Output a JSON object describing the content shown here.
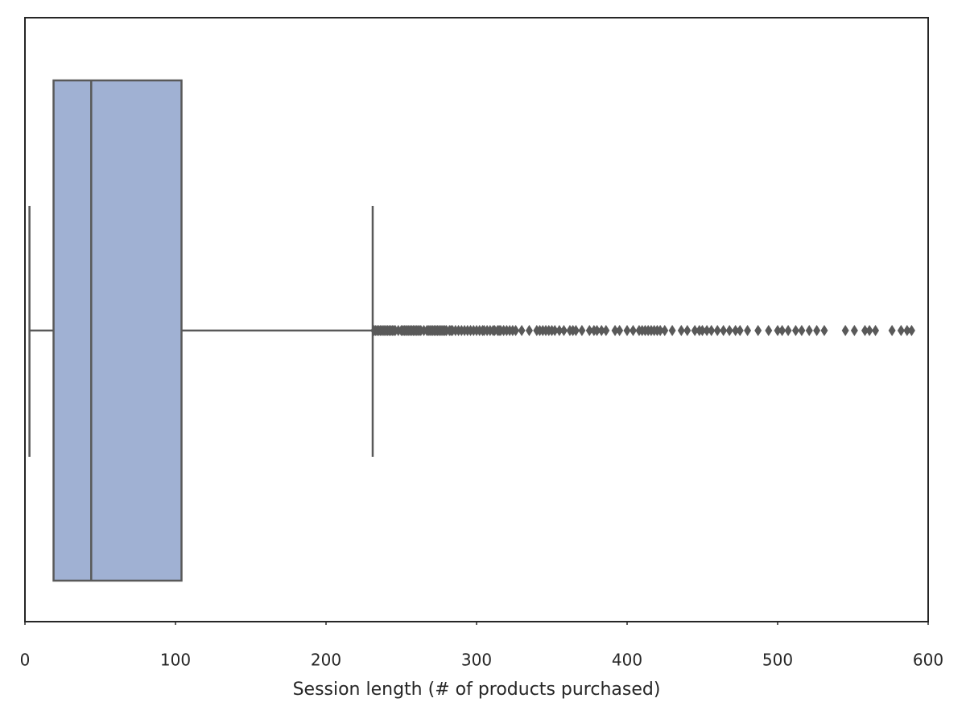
{
  "chart_data": {
    "type": "box",
    "orientation": "horizontal",
    "xlabel": "Session length (# of products purchased)",
    "xlim": [
      0,
      600
    ],
    "xticks": [
      0,
      100,
      200,
      300,
      400,
      500,
      600
    ],
    "color": "#a0b1d3",
    "edge_color": "#595959",
    "whislo": 3,
    "q1": 19,
    "med": 44,
    "q3": 104,
    "whishi": 231,
    "fliers": [
      232,
      233,
      234,
      235,
      236,
      237,
      238,
      239,
      240,
      241,
      242,
      243,
      244,
      245,
      246,
      248,
      250,
      251,
      252,
      253,
      254,
      255,
      256,
      257,
      258,
      259,
      260,
      261,
      262,
      263,
      265,
      267,
      268,
      269,
      270,
      271,
      272,
      273,
      274,
      275,
      276,
      277,
      278,
      279,
      280,
      282,
      283,
      284,
      286,
      288,
      290,
      292,
      294,
      296,
      298,
      300,
      302,
      304,
      305,
      307,
      309,
      311,
      312,
      314,
      315,
      316,
      318,
      320,
      322,
      324,
      326,
      330,
      335,
      340,
      342,
      344,
      346,
      348,
      350,
      352,
      355,
      358,
      362,
      364,
      366,
      370,
      375,
      378,
      380,
      383,
      386,
      392,
      395,
      400,
      404,
      408,
      410,
      412,
      414,
      416,
      418,
      420,
      422,
      425,
      430,
      436,
      440,
      445,
      448,
      450,
      453,
      456,
      460,
      464,
      468,
      472,
      475,
      480,
      487,
      494,
      500,
      503,
      507,
      512,
      516,
      521,
      526,
      531,
      545,
      551,
      558,
      561,
      565,
      576,
      582,
      586,
      589
    ]
  }
}
